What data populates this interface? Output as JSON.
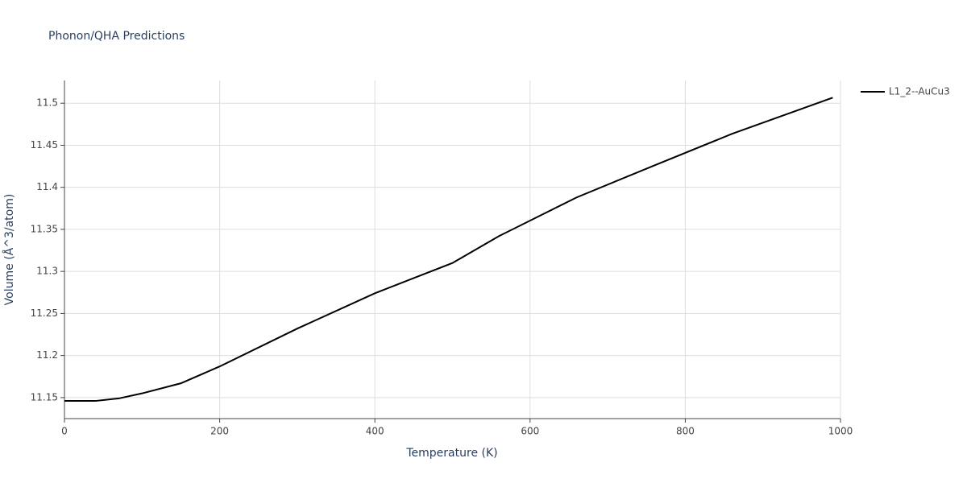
{
  "chart_data": {
    "type": "line",
    "title": "Phonon/QHA Predictions",
    "x_label": "Temperature (K)",
    "y_label": "Volume (Å^3/atom)",
    "x": [
      0,
      40,
      70,
      100,
      150,
      200,
      300,
      400,
      500,
      560,
      660,
      760,
      860,
      990
    ],
    "series": [
      {
        "name": "L1_2--AuCu3",
        "color": "#000000",
        "values": [
          11.146,
          11.146,
          11.149,
          11.155,
          11.167,
          11.187,
          11.232,
          11.274,
          11.31,
          11.342,
          11.388,
          11.426,
          11.4635,
          11.5066
        ]
      }
    ],
    "xlim": [
      0,
      1000
    ],
    "xticks": [
      0,
      200,
      400,
      600,
      800,
      1000
    ],
    "ylim": [
      11.125,
      11.527
    ],
    "yticks": [
      11.15,
      11.2,
      11.25,
      11.3,
      11.35,
      11.4,
      11.45,
      11.5
    ],
    "grid": true,
    "legend": "top-right"
  }
}
